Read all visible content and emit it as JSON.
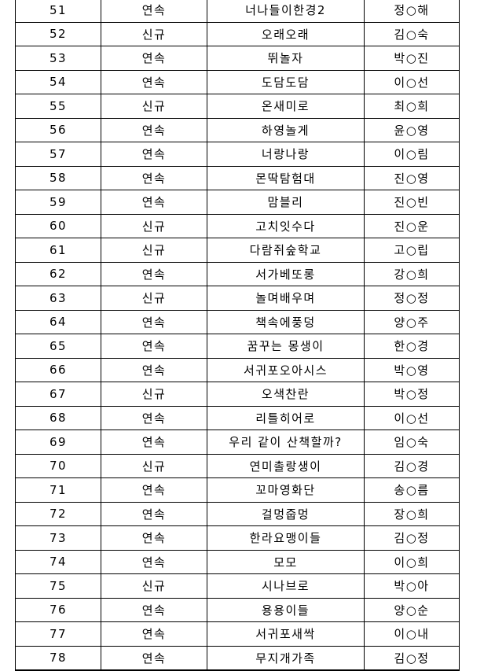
{
  "page": {
    "background_color": "#ffffff",
    "border_color": "#000000",
    "text_color": "#000000"
  },
  "table": {
    "rows": [
      {
        "no": "51",
        "status": "연속",
        "program": "너나들이한경2",
        "person": "정○해"
      },
      {
        "no": "52",
        "status": "신규",
        "program": "오래오래",
        "person": "김○숙"
      },
      {
        "no": "53",
        "status": "연속",
        "program": "뛰놀자",
        "person": "박○진"
      },
      {
        "no": "54",
        "status": "연속",
        "program": "도담도담",
        "person": "이○선"
      },
      {
        "no": "55",
        "status": "신규",
        "program": "온새미로",
        "person": "최○희"
      },
      {
        "no": "56",
        "status": "연속",
        "program": "하영놀게",
        "person": "윤○영"
      },
      {
        "no": "57",
        "status": "연속",
        "program": "너랑나랑",
        "person": "이○림"
      },
      {
        "no": "58",
        "status": "연속",
        "program": "몬딱탐험대",
        "person": "진○영"
      },
      {
        "no": "59",
        "status": "연속",
        "program": "맘블리",
        "person": "진○빈"
      },
      {
        "no": "60",
        "status": "신규",
        "program": "고치잇수다",
        "person": "진○운"
      },
      {
        "no": "61",
        "status": "신규",
        "program": "다람쥐숲학교",
        "person": "고○립"
      },
      {
        "no": "62",
        "status": "연속",
        "program": "서가베또롱",
        "person": "강○희"
      },
      {
        "no": "63",
        "status": "신규",
        "program": "놀며배우며",
        "person": "정○정"
      },
      {
        "no": "64",
        "status": "연속",
        "program": "책속에풍덩",
        "person": "양○주"
      },
      {
        "no": "65",
        "status": "연속",
        "program": "꿈꾸는 몽생이",
        "person": "한○경"
      },
      {
        "no": "66",
        "status": "연속",
        "program": "서귀포오아시스",
        "person": "박○영"
      },
      {
        "no": "67",
        "status": "신규",
        "program": "오색찬란",
        "person": "박○정"
      },
      {
        "no": "68",
        "status": "연속",
        "program": "리틀히어로",
        "person": "이○선"
      },
      {
        "no": "69",
        "status": "연속",
        "program": "우리 같이 산책할까?",
        "person": "임○숙"
      },
      {
        "no": "70",
        "status": "신규",
        "program": "연미촐랑생이",
        "person": "김○경"
      },
      {
        "no": "71",
        "status": "연속",
        "program": "꼬마영화단",
        "person": "송○름"
      },
      {
        "no": "72",
        "status": "연속",
        "program": "걸멍줍멍",
        "person": "장○희"
      },
      {
        "no": "73",
        "status": "연속",
        "program": "한라요맹이들",
        "person": "김○정"
      },
      {
        "no": "74",
        "status": "연속",
        "program": "모모",
        "person": "이○희"
      },
      {
        "no": "75",
        "status": "신규",
        "program": "시나브로",
        "person": "박○아"
      },
      {
        "no": "76",
        "status": "연속",
        "program": "용용이들",
        "person": "양○순"
      },
      {
        "no": "77",
        "status": "연속",
        "program": "서귀포새싹",
        "person": "이○내"
      },
      {
        "no": "78",
        "status": "연속",
        "program": "무지개가족",
        "person": "김○정"
      }
    ]
  }
}
